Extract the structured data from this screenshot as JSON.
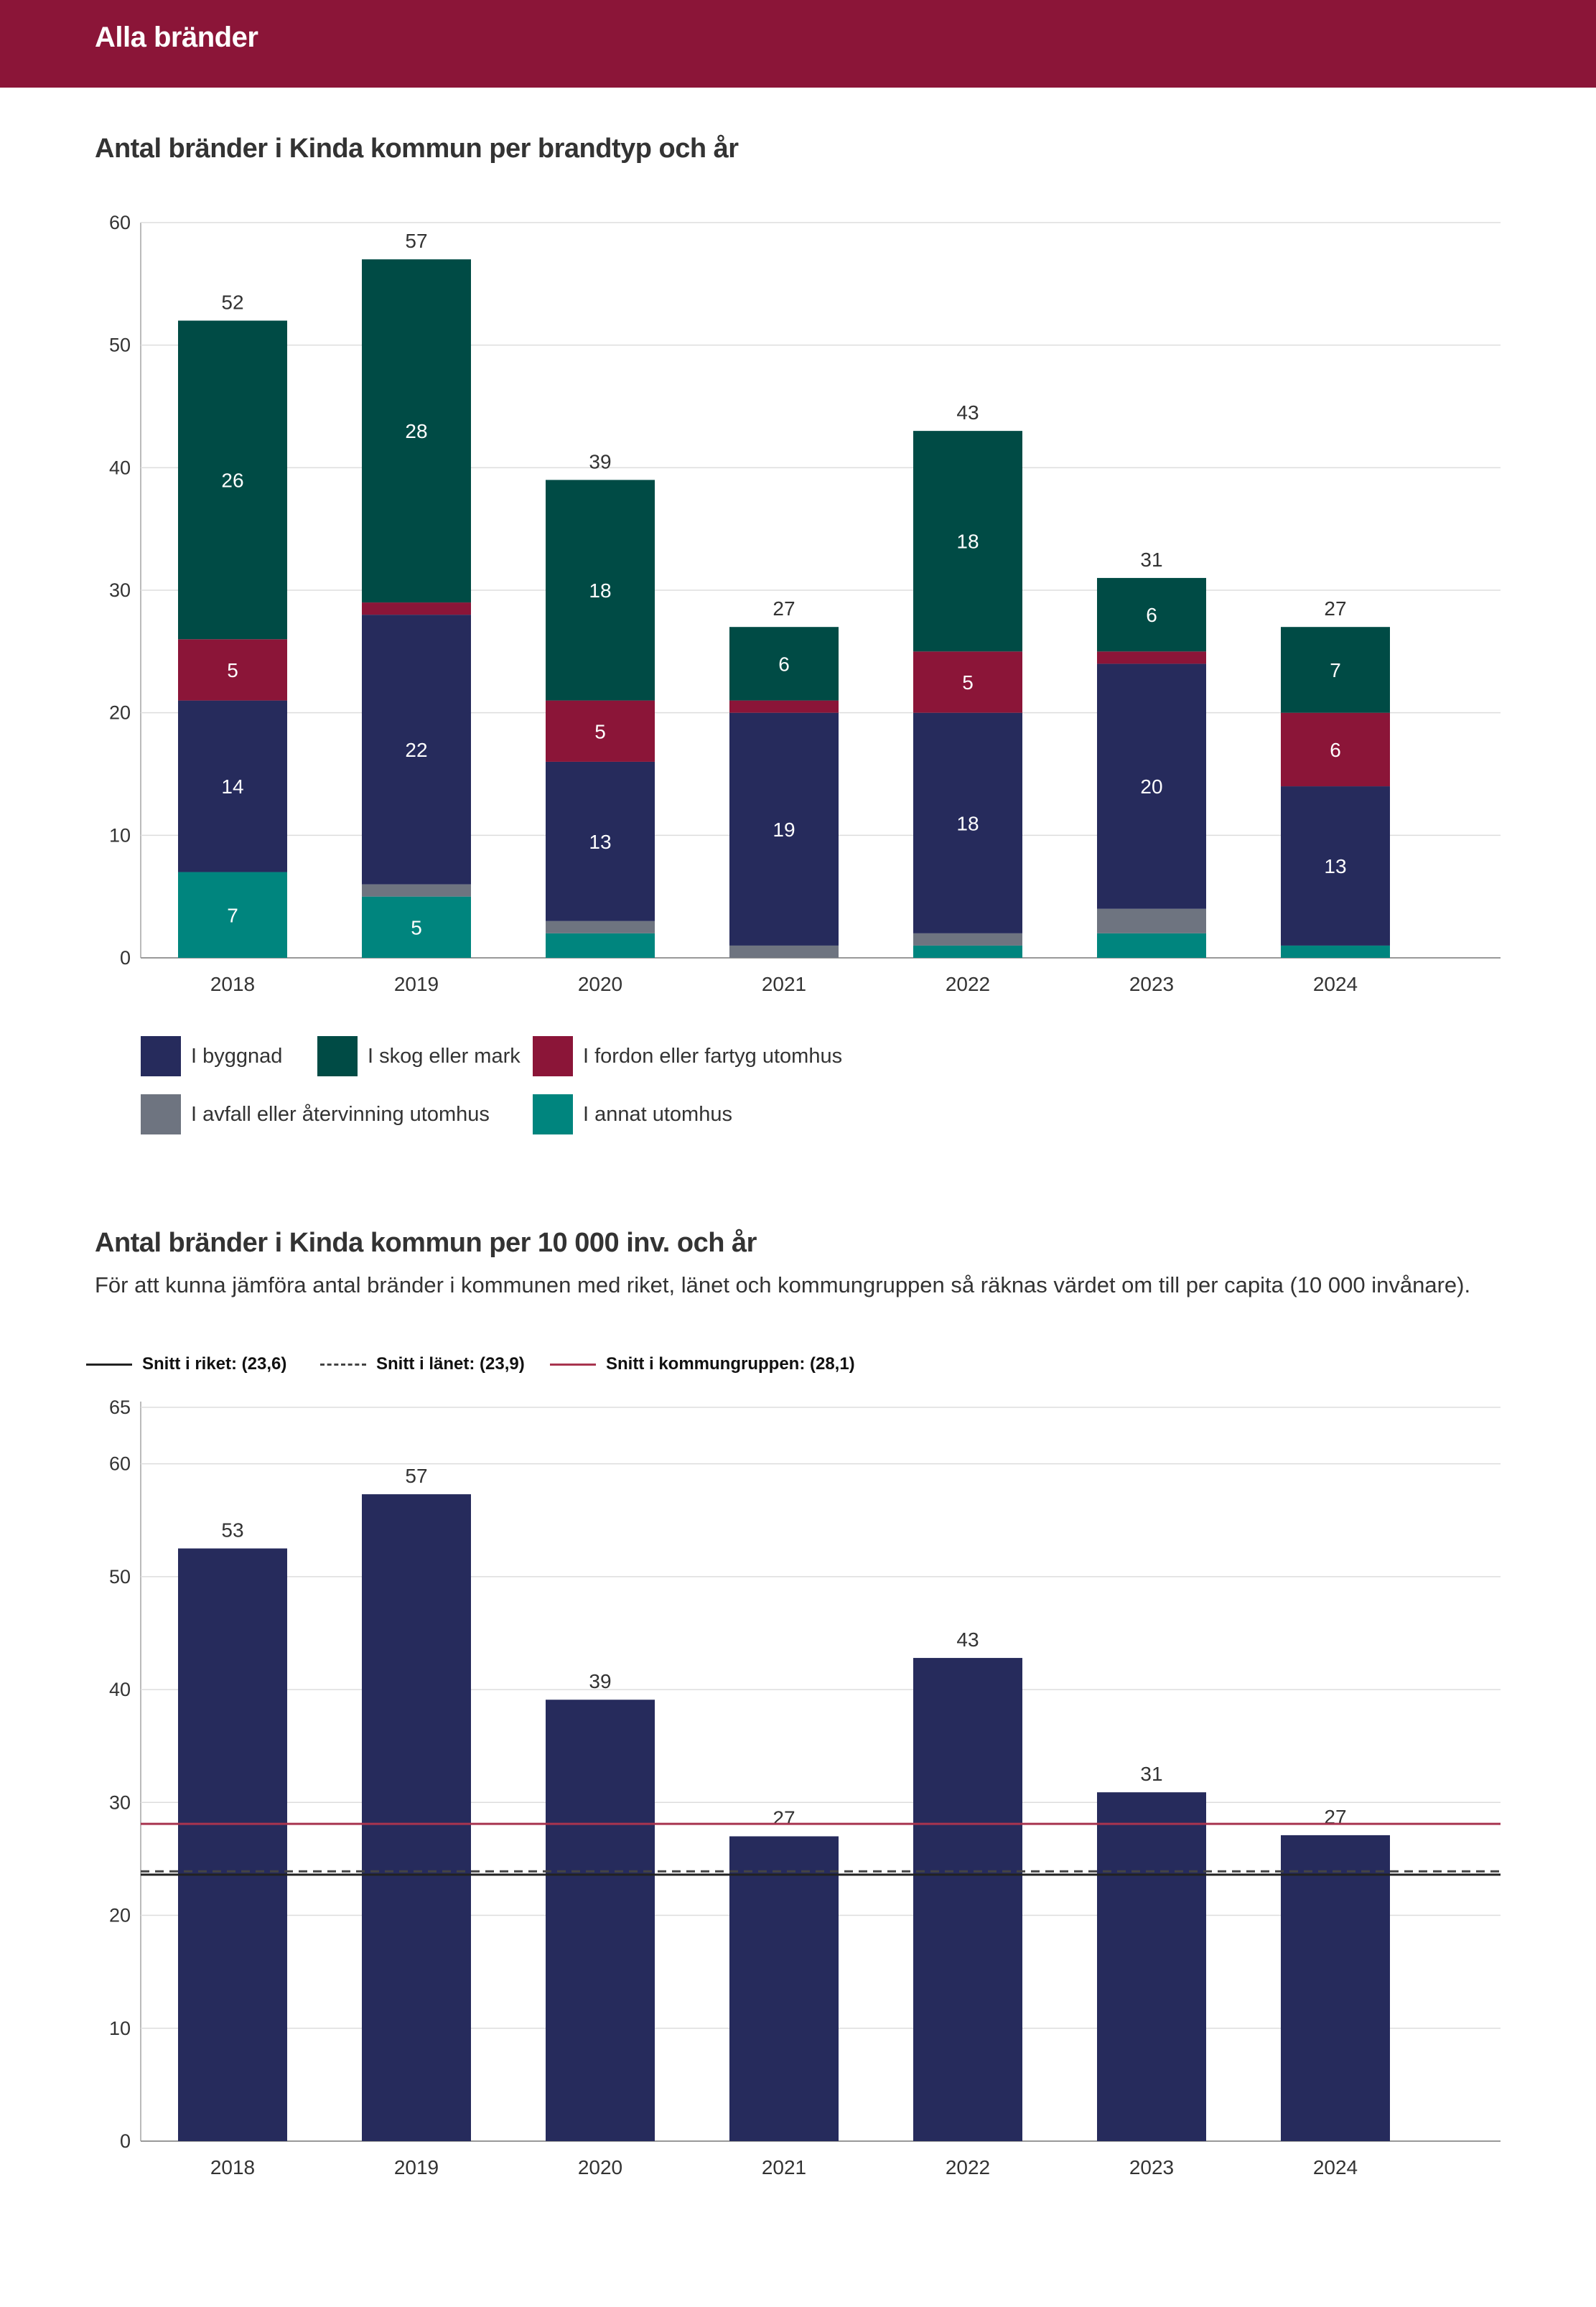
{
  "header": {
    "title": "Alla bränder"
  },
  "chart1": {
    "title": "Antal bränder i Kinda kommun per brandtyp och år"
  },
  "chart2": {
    "title": "Antal bränder i Kinda kommun per 10 000 inv. och år",
    "subtitle": "För att kunna jämföra antal bränder i kommunen med riket, länet och kommungruppen så räknas värdet om till per capita (10 000 invånare)."
  },
  "colors": {
    "banner": "#8b1538",
    "byggnad": "#262b5c",
    "skog": "#004b45",
    "fordon": "#8b1538",
    "avfall": "#6e7480",
    "annat": "#00857e",
    "riket": "#222222",
    "lanet": "#444444",
    "kommungrupp": "#a8344f"
  },
  "chart_data": [
    {
      "type": "bar",
      "stacked": true,
      "title": "Antal bränder i Kinda kommun per brandtyp och år",
      "categories": [
        "2018",
        "2019",
        "2020",
        "2021",
        "2022",
        "2023",
        "2024"
      ],
      "ylim": [
        0,
        60
      ],
      "yticks": [
        0,
        10,
        20,
        30,
        40,
        50,
        60
      ],
      "totals": [
        52,
        57,
        39,
        27,
        43,
        31,
        27
      ],
      "series": [
        {
          "key": "annat",
          "name": "I annat utomhus",
          "values": [
            7,
            5,
            2,
            0,
            1,
            2,
            1
          ],
          "labels": [
            "7",
            "5",
            "",
            "",
            "",
            "",
            ""
          ]
        },
        {
          "key": "avfall",
          "name": "I avfall eller återvinning utomhus",
          "values": [
            0,
            1,
            1,
            1,
            1,
            2,
            0
          ],
          "labels": [
            "",
            "",
            "",
            "",
            "",
            "",
            ""
          ]
        },
        {
          "key": "byggnad",
          "name": "I byggnad",
          "values": [
            14,
            22,
            13,
            19,
            18,
            20,
            13
          ],
          "labels": [
            "14",
            "22",
            "13",
            "19",
            "18",
            "20",
            "13"
          ]
        },
        {
          "key": "fordon",
          "name": "I fordon eller fartyg utomhus",
          "values": [
            5,
            1,
            5,
            1,
            5,
            1,
            6
          ],
          "labels": [
            "5",
            "",
            "5",
            "",
            "5",
            "",
            "6"
          ]
        },
        {
          "key": "skog",
          "name": "I skog eller mark",
          "values": [
            26,
            28,
            18,
            6,
            18,
            6,
            7
          ],
          "labels": [
            "26",
            "28",
            "18",
            "6",
            "18",
            "6",
            "7"
          ]
        }
      ],
      "legend": [
        {
          "key": "byggnad",
          "label": "I byggnad"
        },
        {
          "key": "skog",
          "label": "I skog eller mark"
        },
        {
          "key": "fordon",
          "label": "I fordon eller fartyg utomhus"
        },
        {
          "key": "avfall",
          "label": "I avfall eller återvinning utomhus"
        },
        {
          "key": "annat",
          "label": "I annat utomhus"
        }
      ]
    },
    {
      "type": "bar",
      "title": "Antal bränder i Kinda kommun per 10 000 inv. och år",
      "categories": [
        "2018",
        "2019",
        "2020",
        "2021",
        "2022",
        "2023",
        "2024"
      ],
      "values": [
        52.5,
        57.3,
        39.1,
        27,
        42.8,
        30.9,
        27.1
      ],
      "labels": [
        "53",
        "57",
        "39",
        "27",
        "43",
        "31",
        "27"
      ],
      "ylim": [
        0,
        65
      ],
      "yticks": [
        0,
        10,
        20,
        30,
        40,
        50,
        60,
        65
      ],
      "reference_lines": [
        {
          "key": "riket",
          "label": "Snitt i riket: (23,6)",
          "value": 23.6,
          "style": "solid"
        },
        {
          "key": "lanet",
          "label": "Snitt i länet: (23,9)",
          "value": 23.9,
          "style": "dashed"
        },
        {
          "key": "kommungrupp",
          "label": "Snitt i kommungruppen: (28,1)",
          "value": 28.1,
          "style": "solid"
        }
      ]
    }
  ]
}
